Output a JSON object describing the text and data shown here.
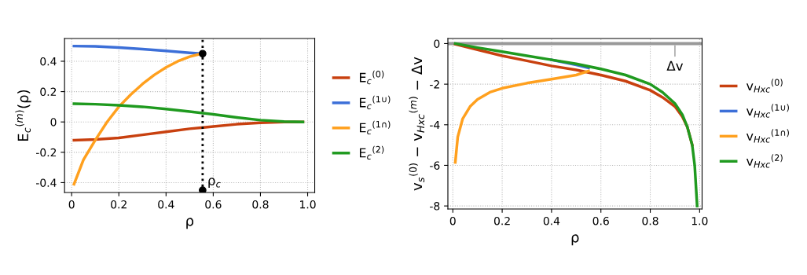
{
  "chart_data": [
    {
      "type": "line",
      "xlabel": "ρ",
      "ylabel": "E$_{c}$$^{(m)}$(ρ)",
      "xlim": [
        -0.03,
        1.03
      ],
      "ylim": [
        -0.465,
        0.55
      ],
      "xticks": [
        0,
        0.2,
        0.4,
        0.6,
        0.8,
        {
          "value": 1,
          "label": "1.0"
        }
      ],
      "yticks": [
        -0.4,
        -0.2,
        0,
        0.2,
        0.4
      ],
      "grid": true,
      "legend": "right",
      "line_style": "solid",
      "marker": "none",
      "ref_lines": [
        {
          "axis": "x",
          "value": 0.555,
          "label": "ρ$_{c}$",
          "color": "#000000",
          "line_style": "dotted"
        }
      ],
      "series": [
        {
          "name": "E$_{c}$$^{(0)}$",
          "color": "#c8400f",
          "x": [
            0.01,
            0.1,
            0.2,
            0.3,
            0.4,
            0.5,
            0.6,
            0.7,
            0.8,
            0.9,
            0.98
          ],
          "values": [
            -0.12,
            -0.115,
            -0.105,
            -0.085,
            -0.065,
            -0.045,
            -0.03,
            -0.015,
            -0.005,
            0,
            0
          ]
        },
        {
          "name": "E$_{c}$$^{(1∪)}$",
          "color": "#3c6fd8",
          "x": [
            0.01,
            0.1,
            0.2,
            0.3,
            0.4,
            0.5,
            0.55
          ],
          "values": [
            0.5,
            0.498,
            0.49,
            0.48,
            0.468,
            0.455,
            0.45
          ]
        },
        {
          "name": "E$_{c}$$^{(1∩)}$",
          "color": "#ffa01e",
          "x": [
            0.01,
            0.05,
            0.1,
            0.15,
            0.2,
            0.25,
            0.3,
            0.35,
            0.4,
            0.45,
            0.5,
            0.55
          ],
          "values": [
            -0.41,
            -0.25,
            -0.12,
            0,
            0.1,
            0.18,
            0.25,
            0.31,
            0.36,
            0.4,
            0.43,
            0.45
          ]
        },
        {
          "name": "E$_{c}$$^{(2)}$",
          "color": "#1f9a1f",
          "x": [
            0.01,
            0.1,
            0.2,
            0.3,
            0.4,
            0.5,
            0.6,
            0.7,
            0.8,
            0.9,
            0.98
          ],
          "values": [
            0.12,
            0.117,
            0.11,
            0.1,
            0.085,
            0.068,
            0.05,
            0.03,
            0.012,
            0.002,
            0
          ]
        },
        {
          "type": "scatter",
          "marker": "circle",
          "color": "#000000",
          "x": [
            0.555,
            0.555
          ],
          "values": [
            0.45,
            -0.45
          ]
        }
      ]
    },
    {
      "type": "line",
      "xlabel": "ρ",
      "ylabel": "v$_{s}$$^{(0)}$ − v$_{Hxc}$$^{(m)}$ − Δv",
      "xlim": [
        -0.02,
        1.01
      ],
      "ylim": [
        -8.15,
        0.25
      ],
      "xticks": [
        0,
        0.2,
        0.4,
        0.6,
        0.8,
        {
          "value": 1,
          "label": "1.0"
        }
      ],
      "yticks": [
        -8,
        -6,
        -4,
        -2,
        0
      ],
      "grid": true,
      "legend": "right",
      "line_style": "solid",
      "marker": "none",
      "ref_lines": [
        {
          "axis": "y",
          "value": 0,
          "label": "Δv",
          "color": "#999999",
          "line_style": "solid"
        }
      ],
      "series": [
        {
          "name": "v$_{Hxc}$$^{(0)}$",
          "color": "#c8400f",
          "x": [
            0.01,
            0.1,
            0.2,
            0.3,
            0.4,
            0.5,
            0.6,
            0.7,
            0.8,
            0.85,
            0.9,
            0.93,
            0.95,
            0.97
          ],
          "values": [
            -0.03,
            -0.3,
            -0.6,
            -0.85,
            -1.1,
            -1.3,
            -1.55,
            -1.85,
            -2.3,
            -2.65,
            -3.1,
            -3.6,
            -4.1,
            -5.0
          ]
        },
        {
          "name": "v$_{Hxc}$$^{(1∪)}$",
          "color": "#3c6fd8",
          "x": [
            0.4,
            0.5,
            0.55
          ],
          "values": [
            -0.8,
            -1.05,
            -1.2
          ]
        },
        {
          "name": "v$_{Hxc}$$^{(1∩)}$",
          "color": "#ffa01e",
          "x": [
            0.01,
            0.02,
            0.04,
            0.07,
            0.1,
            0.15,
            0.2,
            0.3,
            0.4,
            0.5,
            0.55
          ],
          "values": [
            -5.85,
            -4.6,
            -3.7,
            -3.1,
            -2.75,
            -2.4,
            -2.2,
            -1.95,
            -1.75,
            -1.55,
            -1.35
          ]
        },
        {
          "name": "v$_{Hxc}$$^{(2)}$",
          "color": "#1f9a1f",
          "x": [
            0.01,
            0.1,
            0.2,
            0.3,
            0.4,
            0.5,
            0.6,
            0.7,
            0.8,
            0.85,
            0.9,
            0.93,
            0.95,
            0.97,
            0.98,
            0.99
          ],
          "values": [
            0,
            -0.2,
            -0.4,
            -0.6,
            -0.8,
            -1.0,
            -1.25,
            -1.55,
            -2.0,
            -2.4,
            -2.95,
            -3.5,
            -4.1,
            -5.0,
            -6.0,
            -8.0
          ]
        }
      ]
    }
  ]
}
